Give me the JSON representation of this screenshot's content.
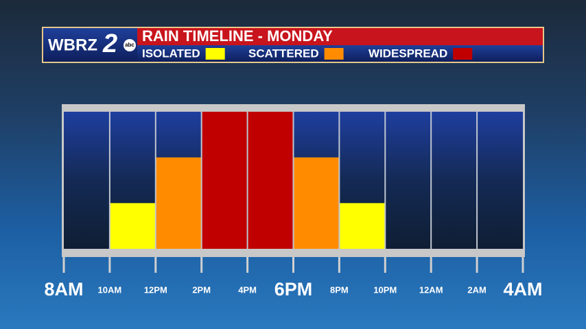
{
  "chart_data": {
    "type": "bar",
    "title": "RAIN TIMELINE - MONDAY",
    "branding": {
      "station": "WBRZ",
      "channel": "2",
      "network": "abc"
    },
    "x_tick_labels": [
      "8AM",
      "10AM",
      "12PM",
      "2PM",
      "4PM",
      "6PM",
      "8PM",
      "10PM",
      "12AM",
      "2AM",
      "4AM"
    ],
    "values": [
      0,
      1,
      2,
      3,
      3,
      2,
      1,
      0,
      0,
      0
    ],
    "ylim": [
      0,
      3
    ],
    "levels": [
      {
        "name": "ISOLATED",
        "color": "#ffff00",
        "value": 1
      },
      {
        "name": "SCATTERED",
        "color": "#ff8c00",
        "value": 2
      },
      {
        "name": "WIDESPREAD",
        "color": "#c00000",
        "value": 3
      }
    ]
  }
}
